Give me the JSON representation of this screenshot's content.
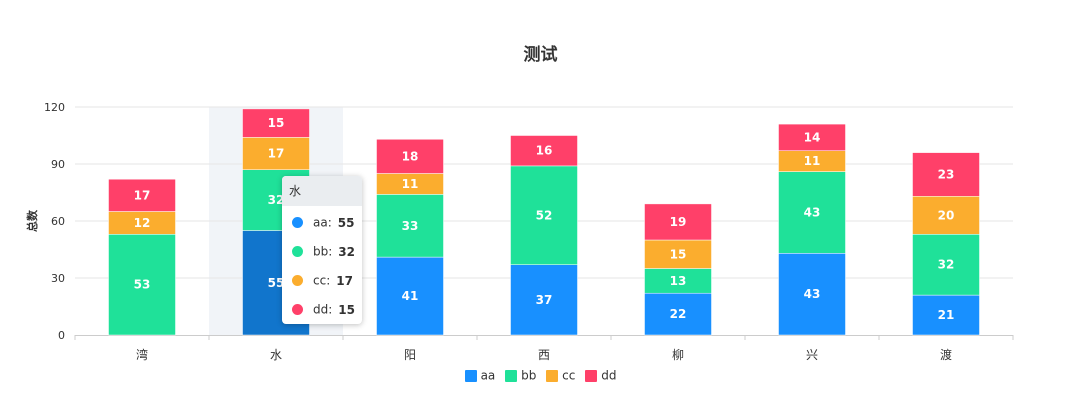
{
  "chart_data": {
    "type": "bar",
    "stacked": true,
    "title": "测试",
    "ylabel": "总数",
    "xlabel": "",
    "ylim": [
      0,
      120
    ],
    "yticks": [
      0,
      30,
      60,
      90,
      120
    ],
    "categories": [
      "湾",
      "水",
      "阳",
      "西",
      "柳",
      "兴",
      "渡"
    ],
    "series": [
      {
        "name": "aa",
        "color": "#1890ff",
        "values": [
          0,
          55,
          41,
          37,
          22,
          43,
          21
        ]
      },
      {
        "name": "bb",
        "color": "#1fe199",
        "values": [
          53,
          32,
          33,
          52,
          13,
          43,
          32
        ]
      },
      {
        "name": "cc",
        "color": "#fbad2e",
        "values": [
          12,
          17,
          11,
          0,
          15,
          11,
          20
        ]
      },
      {
        "name": "dd",
        "color": "#ff4069",
        "values": [
          17,
          15,
          18,
          16,
          19,
          14,
          23
        ]
      }
    ],
    "legend": "bottom-center",
    "grid": true,
    "hovered_category": "水"
  },
  "tooltip": {
    "title": "水",
    "items": [
      {
        "name": "aa:",
        "value": "55",
        "color": "#1890ff"
      },
      {
        "name": "bb:",
        "value": "32",
        "color": "#1fe199"
      },
      {
        "name": "cc:",
        "value": "17",
        "color": "#fbad2e"
      },
      {
        "name": "dd:",
        "value": "15",
        "color": "#ff4069"
      }
    ]
  }
}
